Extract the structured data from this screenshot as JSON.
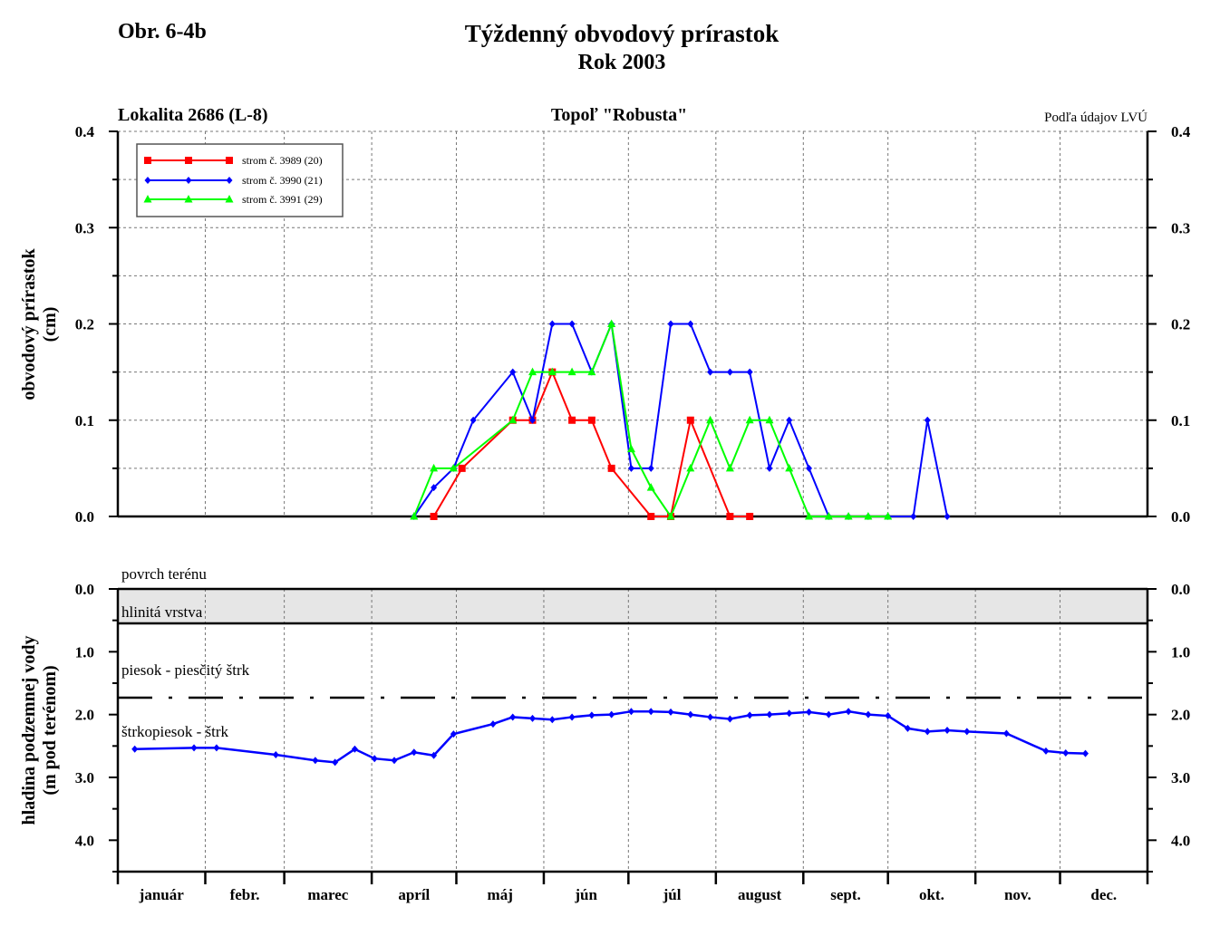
{
  "header": {
    "fig_label": "Obr. 6-4b",
    "title": "Týždenný obvodový prírastok",
    "subtitle": "Rok 2003",
    "location": "Lokalita 2686 (L-8)",
    "species": "Topoľ \"Robusta\"",
    "source": "Podľa údajov LVÚ"
  },
  "months": [
    "január",
    "febr.",
    "marec",
    "apríl",
    "máj",
    "jún",
    "júl",
    "august",
    "sept.",
    "okt.",
    "nov.",
    "dec."
  ],
  "colors": {
    "s1": "#ff0000",
    "s2": "#0000ff",
    "s3": "#00ff00",
    "gw": "#0000ff",
    "layer": "#e6e6e6"
  },
  "chart_data": [
    {
      "type": "line",
      "ylabel_line1": "obvodový prírastok",
      "ylabel_line2": "(cm)",
      "ylim": [
        0,
        0.4
      ],
      "yticks": [
        "0.0",
        "0.1",
        "0.2",
        "0.3",
        "0.4"
      ],
      "x_unit": "day of year (2003)",
      "grid": true,
      "legend_position": "top-left",
      "series": [
        {
          "name": "strom č. 3989 (20)",
          "marker": "square",
          "x": [
            112,
            122,
            140,
            147,
            154,
            161,
            168,
            175,
            189,
            196,
            203,
            217,
            224
          ],
          "y": [
            0.0,
            0.05,
            0.1,
            0.1,
            0.15,
            0.1,
            0.1,
            0.05,
            0.0,
            0.0,
            0.1,
            0.0,
            0.0
          ]
        },
        {
          "name": "strom č. 3990 (21)",
          "marker": "diamond",
          "x": [
            105,
            112,
            119,
            126,
            140,
            147,
            154,
            161,
            168,
            175,
            182,
            189,
            196,
            203,
            210,
            217,
            224,
            231,
            238,
            245,
            252,
            259,
            266,
            273,
            282,
            287,
            294
          ],
          "y": [
            0.0,
            0.03,
            0.05,
            0.1,
            0.15,
            0.1,
            0.2,
            0.2,
            0.15,
            0.2,
            0.05,
            0.05,
            0.2,
            0.2,
            0.15,
            0.15,
            0.15,
            0.05,
            0.1,
            0.05,
            0.0,
            0.0,
            0.0,
            0.0,
            0.0,
            0.1,
            0.0
          ]
        },
        {
          "name": "strom č. 3991 (29)",
          "marker": "triangle",
          "x": [
            105,
            112,
            119,
            140,
            147,
            154,
            161,
            168,
            175,
            182,
            189,
            196,
            203,
            210,
            217,
            224,
            231,
            238,
            245,
            252,
            259,
            266,
            273
          ],
          "y": [
            0.0,
            0.05,
            0.05,
            0.1,
            0.15,
            0.15,
            0.15,
            0.15,
            0.2,
            0.07,
            0.03,
            0.0,
            0.05,
            0.1,
            0.05,
            0.1,
            0.1,
            0.05,
            0.0,
            0.0,
            0.0,
            0.0,
            0.0
          ]
        }
      ]
    },
    {
      "type": "line",
      "ylabel_line1": "hladina podzemnej vody",
      "ylabel_line2": "(m pod terénom)",
      "ylim": [
        0,
        4.5
      ],
      "y_inverted": true,
      "yticks": [
        "0.0",
        "1.0",
        "2.0",
        "3.0",
        "4.0"
      ],
      "x_unit": "day of year (2003)",
      "grid": true,
      "layers": [
        {
          "label": "povrch terénu",
          "depth": 0.0
        },
        {
          "label": "hlinitá vrstva",
          "depth": 0.55
        },
        {
          "label": "piesok - piesčitý štrk",
          "depth": 1.75
        },
        {
          "label": "štrkopiesok - štrk",
          "depth": 4.5
        }
      ],
      "series": [
        {
          "name": "",
          "marker": "diamond",
          "x": [
            6,
            27,
            35,
            56,
            70,
            77,
            84,
            91,
            98,
            105,
            112,
            119,
            133,
            140,
            147,
            154,
            161,
            168,
            175,
            182,
            189,
            196,
            203,
            210,
            217,
            224,
            231,
            238,
            245,
            252,
            259,
            266,
            273,
            280,
            287,
            294,
            301,
            315,
            329,
            336,
            343
          ],
          "y": [
            2.55,
            2.53,
            2.53,
            2.64,
            2.73,
            2.76,
            2.55,
            2.7,
            2.73,
            2.6,
            2.65,
            2.31,
            2.15,
            2.04,
            2.06,
            2.08,
            2.04,
            2.01,
            2.0,
            1.95,
            1.95,
            1.96,
            2.0,
            2.04,
            2.07,
            2.01,
            2.0,
            1.98,
            1.96,
            2.0,
            1.95,
            2.0,
            2.02,
            2.22,
            2.27,
            2.25,
            2.27,
            2.3,
            2.58,
            2.61,
            2.62
          ]
        }
      ]
    }
  ]
}
